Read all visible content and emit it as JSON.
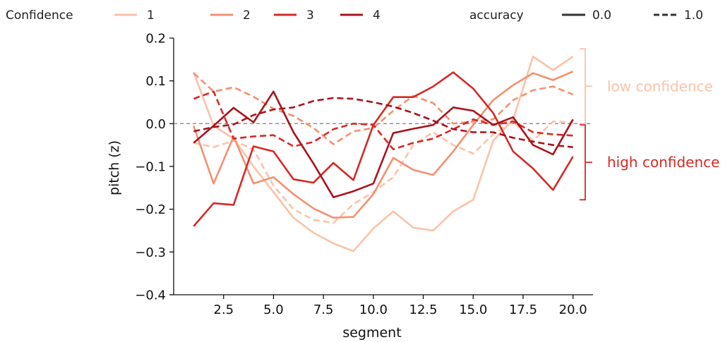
{
  "chart_data": {
    "type": "line",
    "title": "",
    "xlabel": "segment",
    "ylabel": "pitch (z)",
    "xlim": [
      0.0,
      21.0
    ],
    "ylim": [
      -0.4,
      0.2
    ],
    "xticks": [
      "2.5",
      "5.0",
      "7.5",
      "10.0",
      "12.5",
      "15.0",
      "17.5",
      "20.0"
    ],
    "yticks": [
      "−0.4",
      "−0.3",
      "−0.2",
      "−0.1",
      "0.0",
      "0.1",
      "0.2"
    ],
    "x": [
      1,
      2,
      3,
      4,
      5,
      6,
      7,
      8,
      9,
      10,
      11,
      12,
      13,
      14,
      15,
      16,
      17,
      18,
      19,
      20
    ],
    "reference_line": {
      "y": 0.0,
      "style": "dashed",
      "color": "#888888"
    },
    "legend": {
      "position": "top",
      "hue_title": "Confidence",
      "hue_entries": [
        {
          "label": "1",
          "color": "#fcc2a8"
        },
        {
          "label": "2",
          "color": "#f4906f"
        },
        {
          "label": "3",
          "color": "#d42a26"
        },
        {
          "label": "4",
          "color": "#a8141c"
        }
      ],
      "style_title": "accuracy",
      "style_entries": [
        {
          "label": "0.0",
          "dash": "solid"
        },
        {
          "label": "1.0",
          "dash": "dashed"
        }
      ]
    },
    "annotations": [
      {
        "text": "low confidence",
        "color": "#fcc2a8",
        "bracket_y": [
          0.175,
          0.0
        ]
      },
      {
        "text": "high confidence",
        "color": "#d42a26",
        "bracket_y": [
          -0.003,
          -0.178
        ]
      }
    ],
    "series": [
      {
        "confidence": "1",
        "accuracy": "0.0",
        "color": "#fcc2a8",
        "dash": "solid",
        "values": [
          0.12,
          -0.005,
          -0.035,
          -0.1,
          -0.16,
          -0.22,
          -0.255,
          -0.28,
          -0.298,
          -0.245,
          -0.205,
          -0.243,
          -0.25,
          -0.205,
          -0.178,
          -0.04,
          0.01,
          0.157,
          0.125,
          0.157
        ]
      },
      {
        "confidence": "1",
        "accuracy": "1.0",
        "color": "#fcc2a8",
        "dash": "dashed",
        "values": [
          -0.045,
          -0.055,
          -0.04,
          -0.06,
          -0.145,
          -0.2,
          -0.225,
          -0.232,
          -0.188,
          -0.16,
          -0.125,
          -0.05,
          -0.02,
          -0.05,
          -0.07,
          -0.025,
          0.005,
          -0.04,
          0.005,
          0.003
        ]
      },
      {
        "confidence": "2",
        "accuracy": "0.0",
        "color": "#f4906f",
        "dash": "solid",
        "values": [
          -0.005,
          -0.14,
          -0.03,
          -0.14,
          -0.125,
          -0.165,
          -0.198,
          -0.22,
          -0.218,
          -0.165,
          -0.08,
          -0.108,
          -0.12,
          -0.065,
          -0.003,
          0.055,
          0.09,
          0.118,
          0.102,
          0.122
        ]
      },
      {
        "confidence": "2",
        "accuracy": "1.0",
        "color": "#f4906f",
        "dash": "dashed",
        "values": [
          0.118,
          0.075,
          0.085,
          0.063,
          0.035,
          0.018,
          -0.01,
          -0.048,
          -0.018,
          -0.01,
          0.03,
          0.065,
          0.048,
          0.0,
          0.005,
          0.01,
          0.055,
          0.078,
          0.087,
          0.068
        ]
      },
      {
        "confidence": "3",
        "accuracy": "0.0",
        "color": "#d42a26",
        "dash": "solid",
        "values": [
          -0.24,
          -0.186,
          -0.19,
          -0.053,
          -0.065,
          -0.13,
          -0.138,
          -0.092,
          -0.132,
          -0.003,
          0.062,
          0.062,
          0.087,
          0.12,
          0.082,
          0.025,
          -0.065,
          -0.105,
          -0.155,
          -0.077
        ]
      },
      {
        "confidence": "3",
        "accuracy": "1.0",
        "color": "#d42a26",
        "dash": "dashed",
        "values": [
          0.058,
          0.075,
          -0.035,
          -0.03,
          -0.027,
          -0.053,
          -0.043,
          -0.013,
          0.0,
          -0.003,
          -0.06,
          -0.045,
          -0.035,
          -0.013,
          0.01,
          -0.003,
          0.005,
          -0.02,
          -0.025,
          -0.028
        ]
      },
      {
        "confidence": "4",
        "accuracy": "0.0",
        "color": "#a8141c",
        "dash": "solid",
        "values": [
          -0.045,
          -0.005,
          0.037,
          0.003,
          0.075,
          -0.02,
          -0.093,
          -0.172,
          -0.158,
          -0.14,
          -0.022,
          -0.012,
          -0.003,
          0.038,
          0.03,
          -0.003,
          0.015,
          -0.05,
          -0.072,
          0.01
        ]
      },
      {
        "confidence": "4",
        "accuracy": "1.0",
        "color": "#a8141c",
        "dash": "dashed",
        "values": [
          -0.018,
          -0.008,
          -0.002,
          0.02,
          0.033,
          0.038,
          0.053,
          0.06,
          0.058,
          0.05,
          0.04,
          0.025,
          0.007,
          -0.013,
          -0.02,
          -0.02,
          -0.033,
          -0.042,
          -0.05,
          -0.055
        ]
      }
    ]
  }
}
